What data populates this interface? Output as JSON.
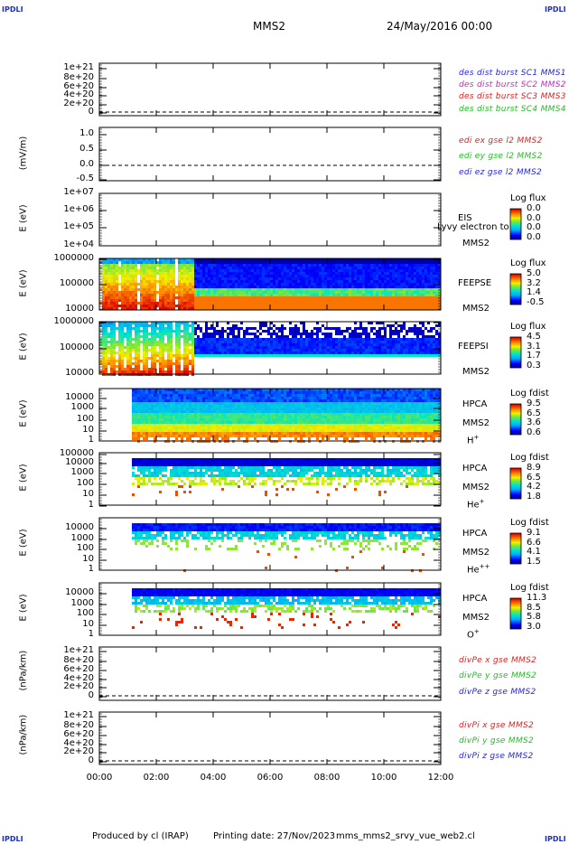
{
  "header": {
    "corner_label": "IPDLI",
    "title": "MMS2",
    "date": "24/May/2016 00:00"
  },
  "footer": {
    "credit": "Produced by cl (IRAP)",
    "printing": "Printing date: 27/Nov/2023",
    "script": "mms_mms2_srvy_vue_web2.cl"
  },
  "chart_data": {
    "type": "heatmap",
    "x_ticks": [
      "00:00",
      "02:00",
      "04:00",
      "06:00",
      "08:00",
      "10:00",
      "12:00"
    ],
    "x_range_hours": [
      0,
      12
    ],
    "panels": [
      {
        "id": "des",
        "type": "line",
        "ylabel": "",
        "yticks": [
          "1e+21",
          "8e+20",
          "6e+20",
          "4e+20",
          "2e+20",
          "0"
        ],
        "legend": [
          {
            "text": "des dist burst SC1 MMS1",
            "color": "#2424e0"
          },
          {
            "text": "des dist burst SC2 MMS2",
            "color": "#d020d0"
          },
          {
            "text": "des dist burst SC3 MMS3",
            "color": "#e02020"
          },
          {
            "text": "des dist burst SC4 MMS4",
            "color": "#20c020"
          }
        ]
      },
      {
        "id": "edi",
        "type": "line",
        "ylabel": "(mV/m)",
        "yticks": [
          "1.0",
          "0.5",
          "0.0",
          "-0.5"
        ],
        "legend": [
          {
            "text": "edi ex gse l2 MMS2",
            "color": "#e02020"
          },
          {
            "text": "edi ey gse l2 MMS2",
            "color": "#20c020"
          },
          {
            "text": "edi ez gse l2 MMS2",
            "color": "#2424e0"
          }
        ]
      },
      {
        "id": "eis",
        "type": "heatmap",
        "ylabel": "E (eV)",
        "yticks": [
          "1e+07",
          "1e+06",
          "1e+05",
          "1e+04"
        ],
        "instrument": "EIS",
        "spacecraft": "MMS2",
        "overlay": "Lyvy electron to",
        "cb_title": "Log flux",
        "cb_values": [
          "0.0",
          "0.0",
          "0.0",
          "0.0"
        ]
      },
      {
        "id": "feepse",
        "type": "heatmap",
        "ylabel": "E (eV)",
        "yticks": [
          "1000000",
          "100000",
          "10000"
        ],
        "instrument": "FEEPSE",
        "spacecraft": "MMS2",
        "cb_title": "Log flux",
        "cb_values": [
          "5.0",
          "3.2",
          "1.4",
          "-0.5"
        ]
      },
      {
        "id": "feepsi",
        "type": "heatmap",
        "ylabel": "E (eV)",
        "yticks": [
          "1000000",
          "100000",
          "10000"
        ],
        "instrument": "FEEPSI",
        "spacecraft": "MMS2",
        "cb_title": "Log flux",
        "cb_values": [
          "4.5",
          "3.1",
          "1.7",
          "0.3"
        ]
      },
      {
        "id": "hpca_h",
        "type": "heatmap",
        "ylabel": "E (eV)",
        "yticks": [
          "10000",
          "1000",
          "100",
          "10",
          "1"
        ],
        "instrument": "HPCA",
        "spacecraft": "MMS2",
        "species": "H",
        "charge": "+",
        "cb_title": "Log fdist",
        "cb_values": [
          "9.5",
          "6.5",
          "3.6",
          "0.6"
        ]
      },
      {
        "id": "hpca_he",
        "type": "heatmap",
        "ylabel": "E (eV)",
        "yticks": [
          "100000",
          "10000",
          "1000",
          "100",
          "10",
          "1"
        ],
        "instrument": "HPCA",
        "spacecraft": "MMS2",
        "species": "He",
        "charge": "+",
        "cb_title": "Log fdist",
        "cb_values": [
          "8.9",
          "6.5",
          "4.2",
          "1.8"
        ]
      },
      {
        "id": "hpca_hepp",
        "type": "heatmap",
        "ylabel": "E (eV)",
        "yticks": [
          "10000",
          "1000",
          "100",
          "10",
          "1"
        ],
        "instrument": "HPCA",
        "spacecraft": "MMS2",
        "species": "He",
        "charge": "++",
        "cb_title": "Log fdist",
        "cb_values": [
          "9.1",
          "6.6",
          "4.1",
          "1.5"
        ]
      },
      {
        "id": "hpca_o",
        "type": "heatmap",
        "ylabel": "E (eV)",
        "yticks": [
          "10000",
          "1000",
          "100",
          "10",
          "1"
        ],
        "instrument": "HPCA",
        "spacecraft": "MMS2",
        "species": "O",
        "charge": "+",
        "cb_title": "Log fdist",
        "cb_values": [
          "11.3",
          "8.5",
          "5.8",
          "3.0"
        ]
      },
      {
        "id": "divpe",
        "type": "line",
        "ylabel": "(nPa/km)",
        "yticks": [
          "1e+21",
          "8e+20",
          "6e+20",
          "4e+20",
          "2e+20",
          "0"
        ],
        "legend": [
          {
            "text": "divPe x gse MMS2",
            "color": "#e02020"
          },
          {
            "text": "divPe y gse MMS2",
            "color": "#20c020"
          },
          {
            "text": "divPe z gse MMS2",
            "color": "#2424e0"
          }
        ]
      },
      {
        "id": "divpi",
        "type": "line",
        "ylabel": "(nPa/km)",
        "yticks": [
          "1e+21",
          "8e+20",
          "6e+20",
          "4e+20",
          "2e+20",
          "0"
        ],
        "legend": [
          {
            "text": "divPi x gse MMS2",
            "color": "#e02020"
          },
          {
            "text": "divPi y gse MMS2",
            "color": "#20c020"
          },
          {
            "text": "divPi z gse MMS2",
            "color": "#2424e0"
          }
        ]
      }
    ]
  }
}
